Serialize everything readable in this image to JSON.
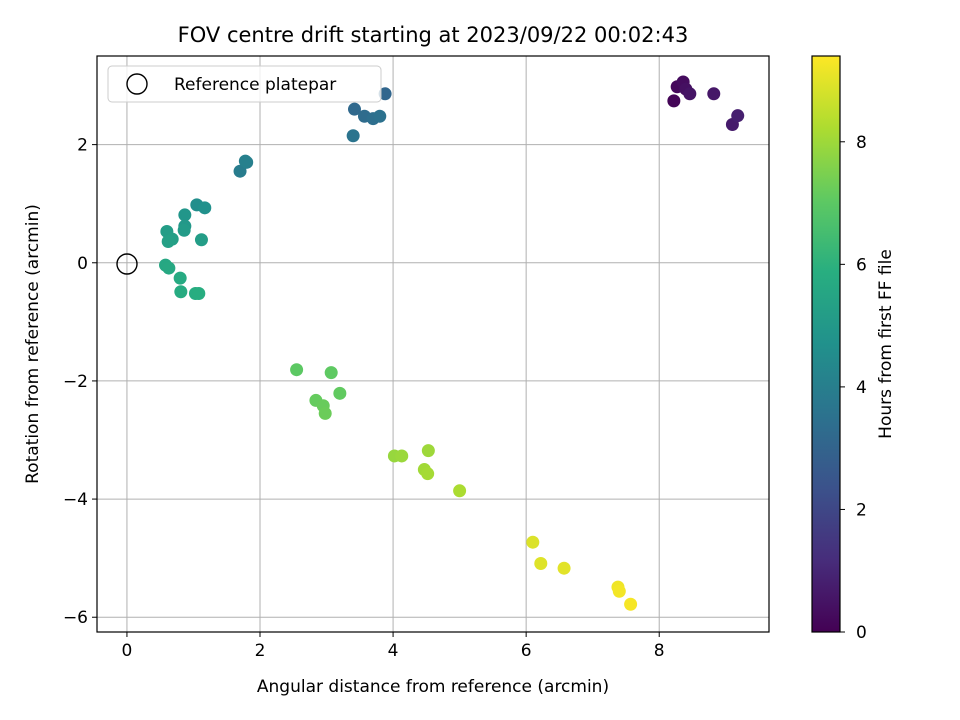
{
  "chart_data": {
    "type": "scatter",
    "title": "FOV centre drift starting at 2023/09/22 00:02:43",
    "xlabel": "Angular distance from reference (arcmin)",
    "ylabel": "Rotation from reference (arcmin)",
    "xlim": [
      -0.45,
      9.65
    ],
    "ylim": [
      -6.25,
      3.5
    ],
    "xticks": [
      0,
      2,
      4,
      6,
      8
    ],
    "yticks": [
      -6,
      -4,
      -2,
      0,
      2
    ],
    "grid": true,
    "legend": {
      "placement": "top-left",
      "label": "Reference platepar"
    },
    "reference_point": {
      "x": 0,
      "y": 0
    },
    "colorbar": {
      "label": "Hours from first FF file",
      "colormap": "viridis",
      "range": [
        0,
        9.4
      ],
      "ticks": [
        0,
        2,
        4,
        6,
        8
      ]
    },
    "points": [
      {
        "x": 8.22,
        "y": 2.74,
        "h": 0.1
      },
      {
        "x": 8.27,
        "y": 2.98,
        "h": 0.2
      },
      {
        "x": 8.36,
        "y": 3.06,
        "h": 0.3
      },
      {
        "x": 8.4,
        "y": 2.94,
        "h": 0.4
      },
      {
        "x": 8.46,
        "y": 2.86,
        "h": 0.5
      },
      {
        "x": 8.82,
        "y": 2.86,
        "h": 0.6
      },
      {
        "x": 9.1,
        "y": 2.34,
        "h": 0.7
      },
      {
        "x": 9.18,
        "y": 2.49,
        "h": 0.8
      },
      {
        "x": 3.88,
        "y": 2.86,
        "h": 3.1
      },
      {
        "x": 3.42,
        "y": 2.6,
        "h": 3.2
      },
      {
        "x": 3.57,
        "y": 2.48,
        "h": 3.3
      },
      {
        "x": 3.7,
        "y": 2.44,
        "h": 3.4
      },
      {
        "x": 3.8,
        "y": 2.48,
        "h": 3.5
      },
      {
        "x": 3.4,
        "y": 2.15,
        "h": 3.6
      },
      {
        "x": 1.7,
        "y": 1.55,
        "h": 3.9
      },
      {
        "x": 1.8,
        "y": 1.7,
        "h": 4.0
      },
      {
        "x": 1.78,
        "y": 1.72,
        "h": 4.05
      },
      {
        "x": 1.05,
        "y": 0.98,
        "h": 4.6
      },
      {
        "x": 1.17,
        "y": 0.93,
        "h": 4.7
      },
      {
        "x": 0.87,
        "y": 0.81,
        "h": 4.9
      },
      {
        "x": 0.87,
        "y": 0.62,
        "h": 5.0
      },
      {
        "x": 0.86,
        "y": 0.55,
        "h": 5.1
      },
      {
        "x": 0.6,
        "y": 0.53,
        "h": 5.2
      },
      {
        "x": 0.68,
        "y": 0.4,
        "h": 5.25
      },
      {
        "x": 0.62,
        "y": 0.36,
        "h": 5.3
      },
      {
        "x": 1.12,
        "y": 0.39,
        "h": 5.2
      },
      {
        "x": 0.58,
        "y": -0.04,
        "h": 5.6
      },
      {
        "x": 0.63,
        "y": -0.09,
        "h": 5.65
      },
      {
        "x": 0.8,
        "y": -0.26,
        "h": 5.7
      },
      {
        "x": 0.81,
        "y": -0.49,
        "h": 5.75
      },
      {
        "x": 1.03,
        "y": -0.52,
        "h": 5.8
      },
      {
        "x": 1.08,
        "y": -0.52,
        "h": 5.85
      },
      {
        "x": 2.55,
        "y": -1.81,
        "h": 7.0
      },
      {
        "x": 3.07,
        "y": -1.86,
        "h": 7.05
      },
      {
        "x": 3.2,
        "y": -2.21,
        "h": 7.1
      },
      {
        "x": 2.84,
        "y": -2.33,
        "h": 7.15
      },
      {
        "x": 2.95,
        "y": -2.42,
        "h": 7.2
      },
      {
        "x": 2.98,
        "y": -2.55,
        "h": 7.25
      },
      {
        "x": 4.02,
        "y": -3.27,
        "h": 7.9
      },
      {
        "x": 4.13,
        "y": -3.27,
        "h": 7.95
      },
      {
        "x": 4.53,
        "y": -3.18,
        "h": 8.0
      },
      {
        "x": 4.47,
        "y": -3.5,
        "h": 8.05
      },
      {
        "x": 4.52,
        "y": -3.57,
        "h": 8.1
      },
      {
        "x": 5.0,
        "y": -3.86,
        "h": 8.2
      },
      {
        "x": 6.1,
        "y": -4.73,
        "h": 8.9
      },
      {
        "x": 6.22,
        "y": -5.09,
        "h": 8.95
      },
      {
        "x": 6.57,
        "y": -5.17,
        "h": 9.0
      },
      {
        "x": 7.38,
        "y": -5.49,
        "h": 9.2
      },
      {
        "x": 7.4,
        "y": -5.56,
        "h": 9.25
      },
      {
        "x": 7.57,
        "y": -5.78,
        "h": 9.3
      }
    ]
  }
}
